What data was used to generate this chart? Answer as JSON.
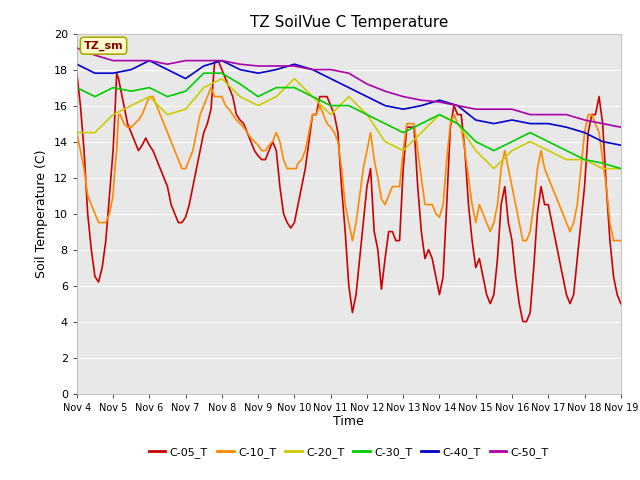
{
  "title": "TZ SoilVue C Temperature",
  "xlabel": "Time",
  "ylabel": "Soil Temperature (C)",
  "ylim": [
    0,
    20
  ],
  "yticks": [
    0,
    2,
    4,
    6,
    8,
    10,
    12,
    14,
    16,
    18,
    20
  ],
  "xtick_labels": [
    "Nov 4",
    "Nov 5",
    "Nov 6",
    "Nov 7",
    "Nov 8",
    "Nov 9",
    "Nov 10",
    "Nov 11",
    "Nov 12",
    "Nov 13",
    "Nov 14",
    "Nov 15",
    "Nov 16",
    "Nov 17",
    "Nov 18",
    "Nov 19"
  ],
  "annotation_text": "TZ_sm",
  "fig_bg_color": "#ffffff",
  "plot_bg_color": "#e8e8e8",
  "grid_color": "#ffffff",
  "series_order": [
    "C-05_T",
    "C-10_T",
    "C-20_T",
    "C-30_T",
    "C-40_T",
    "C-50_T"
  ],
  "series_colors": {
    "C-05_T": "#cc0000",
    "C-10_T": "#ff8800",
    "C-20_T": "#cccc00",
    "C-30_T": "#00cc00",
    "C-40_T": "#0000cc",
    "C-50_T": "#aa00aa"
  },
  "series": {
    "C-05_T": {
      "data_x": [
        0.0,
        0.1,
        0.2,
        0.3,
        0.4,
        0.5,
        0.6,
        0.7,
        0.8,
        0.9,
        1.0,
        1.05,
        1.1,
        1.15,
        1.2,
        1.3,
        1.4,
        1.5,
        1.6,
        1.7,
        1.8,
        1.9,
        2.0,
        2.1,
        2.2,
        2.3,
        2.4,
        2.5,
        2.6,
        2.7,
        2.8,
        2.9,
        3.0,
        3.1,
        3.2,
        3.3,
        3.4,
        3.5,
        3.6,
        3.7,
        3.8,
        3.9,
        4.0,
        4.1,
        4.2,
        4.3,
        4.4,
        4.5,
        4.6,
        4.7,
        4.8,
        4.9,
        5.0,
        5.1,
        5.2,
        5.3,
        5.4,
        5.5,
        5.6,
        5.7,
        5.8,
        5.9,
        6.0,
        6.05,
        6.1,
        6.2,
        6.3,
        6.4,
        6.5,
        6.6,
        6.7,
        6.8,
        6.9,
        7.0,
        7.1,
        7.2,
        7.3,
        7.4,
        7.5,
        7.6,
        7.7,
        7.8,
        7.9,
        8.0,
        8.1,
        8.2,
        8.3,
        8.4,
        8.5,
        8.6,
        8.7,
        8.8,
        8.9,
        9.0,
        9.1,
        9.2,
        9.3,
        9.4,
        9.5,
        9.6,
        9.7,
        9.8,
        9.9,
        10.0,
        10.1,
        10.2,
        10.3,
        10.4,
        10.5,
        10.6,
        10.7,
        10.8,
        10.9,
        11.0,
        11.1,
        11.2,
        11.3,
        11.4,
        11.5,
        11.6,
        11.7,
        11.8,
        11.9,
        12.0,
        12.1,
        12.2,
        12.3,
        12.4,
        12.5,
        12.6,
        12.7,
        12.8,
        12.9,
        13.0,
        13.1,
        13.2,
        13.3,
        13.4,
        13.5,
        13.6,
        13.7,
        13.8,
        13.9,
        14.0,
        14.1,
        14.2,
        14.3,
        14.4,
        14.5,
        14.6,
        14.7,
        14.8,
        14.9,
        15.0
      ],
      "data_y": [
        17.8,
        16.0,
        13.5,
        10.0,
        8.0,
        6.5,
        6.2,
        7.0,
        8.5,
        11.0,
        13.5,
        15.5,
        17.8,
        17.5,
        17.0,
        16.0,
        15.0,
        14.5,
        14.0,
        13.5,
        13.8,
        14.2,
        13.8,
        13.5,
        13.0,
        12.5,
        12.0,
        11.5,
        10.5,
        10.0,
        9.5,
        9.5,
        9.8,
        10.5,
        11.5,
        12.5,
        13.5,
        14.5,
        15.0,
        15.8,
        18.4,
        18.5,
        18.0,
        17.5,
        17.0,
        16.5,
        15.5,
        15.2,
        15.0,
        14.5,
        14.0,
        13.5,
        13.2,
        13.0,
        13.0,
        13.5,
        14.0,
        13.5,
        11.5,
        10.0,
        9.5,
        9.2,
        9.5,
        10.0,
        10.5,
        11.5,
        12.5,
        14.0,
        15.5,
        15.5,
        16.5,
        16.5,
        16.5,
        16.0,
        15.5,
        14.5,
        11.5,
        9.0,
        6.0,
        4.5,
        5.5,
        7.5,
        9.5,
        11.5,
        12.5,
        9.0,
        8.0,
        5.8,
        7.5,
        9.0,
        9.0,
        8.5,
        8.5,
        12.5,
        14.8,
        14.8,
        14.8,
        11.5,
        9.0,
        7.5,
        8.0,
        7.5,
        6.5,
        5.5,
        6.5,
        10.5,
        14.8,
        16.0,
        15.5,
        15.5,
        13.5,
        10.5,
        8.5,
        7.0,
        7.5,
        6.5,
        5.5,
        5.0,
        5.5,
        7.5,
        10.5,
        11.5,
        9.5,
        8.5,
        6.5,
        5.0,
        4.0,
        4.0,
        4.5,
        7.0,
        10.0,
        11.5,
        10.5,
        10.5,
        9.5,
        8.5,
        7.5,
        6.5,
        5.5,
        5.0,
        5.5,
        7.5,
        9.5,
        11.5,
        14.5,
        15.5,
        15.5,
        16.5,
        15.0,
        11.5,
        8.5,
        6.5,
        5.5,
        5.0
      ]
    },
    "C-10_T": {
      "data_x": [
        0.0,
        0.1,
        0.2,
        0.3,
        0.4,
        0.5,
        0.6,
        0.7,
        0.8,
        0.9,
        1.0,
        1.05,
        1.1,
        1.15,
        1.2,
        1.3,
        1.4,
        1.5,
        1.6,
        1.7,
        1.8,
        1.9,
        2.0,
        2.1,
        2.2,
        2.3,
        2.4,
        2.5,
        2.6,
        2.7,
        2.8,
        2.9,
        3.0,
        3.1,
        3.2,
        3.3,
        3.4,
        3.5,
        3.6,
        3.7,
        3.8,
        3.9,
        4.0,
        4.1,
        4.2,
        4.3,
        4.4,
        4.5,
        4.6,
        4.7,
        4.8,
        4.9,
        5.0,
        5.1,
        5.2,
        5.3,
        5.4,
        5.5,
        5.6,
        5.7,
        5.8,
        5.9,
        6.0,
        6.05,
        6.1,
        6.2,
        6.3,
        6.4,
        6.5,
        6.6,
        6.7,
        6.8,
        6.9,
        7.0,
        7.1,
        7.2,
        7.3,
        7.4,
        7.5,
        7.6,
        7.7,
        7.8,
        7.9,
        8.0,
        8.1,
        8.2,
        8.3,
        8.4,
        8.5,
        8.6,
        8.7,
        8.8,
        8.9,
        9.0,
        9.1,
        9.2,
        9.3,
        9.4,
        9.5,
        9.6,
        9.7,
        9.8,
        9.9,
        10.0,
        10.1,
        10.2,
        10.3,
        10.4,
        10.5,
        10.6,
        10.7,
        10.8,
        10.9,
        11.0,
        11.1,
        11.2,
        11.3,
        11.4,
        11.5,
        11.6,
        11.7,
        11.8,
        11.9,
        12.0,
        12.1,
        12.2,
        12.3,
        12.4,
        12.5,
        12.6,
        12.7,
        12.8,
        12.9,
        13.0,
        13.1,
        13.2,
        13.3,
        13.4,
        13.5,
        13.6,
        13.7,
        13.8,
        13.9,
        14.0,
        14.1,
        14.2,
        14.3,
        14.4,
        14.5,
        14.6,
        14.7,
        14.8,
        14.9,
        15.0
      ],
      "data_y": [
        14.5,
        13.5,
        12.5,
        11.0,
        10.5,
        10.0,
        9.5,
        9.5,
        9.5,
        10.0,
        11.0,
        12.5,
        13.5,
        15.5,
        15.5,
        15.0,
        14.8,
        14.8,
        15.0,
        15.2,
        15.5,
        16.0,
        16.5,
        16.5,
        16.0,
        15.5,
        15.0,
        14.5,
        14.0,
        13.5,
        13.0,
        12.5,
        12.5,
        13.0,
        13.5,
        14.5,
        15.5,
        16.0,
        16.5,
        17.0,
        16.5,
        16.5,
        16.5,
        16.0,
        15.8,
        15.5,
        15.2,
        15.0,
        14.8,
        14.5,
        14.2,
        14.0,
        13.8,
        13.5,
        13.5,
        13.8,
        14.0,
        14.5,
        14.0,
        13.0,
        12.5,
        12.5,
        12.5,
        12.5,
        12.8,
        13.0,
        13.5,
        14.5,
        15.5,
        15.5,
        16.0,
        15.5,
        15.0,
        14.8,
        14.5,
        14.0,
        12.5,
        10.5,
        9.5,
        8.5,
        9.5,
        11.0,
        12.5,
        13.5,
        14.5,
        13.0,
        12.0,
        10.8,
        10.5,
        11.0,
        11.5,
        11.5,
        11.5,
        13.5,
        15.0,
        15.0,
        15.0,
        13.5,
        12.0,
        10.5,
        10.5,
        10.5,
        10.0,
        9.8,
        10.5,
        13.0,
        15.0,
        15.5,
        15.0,
        14.8,
        13.5,
        12.0,
        10.5,
        9.5,
        10.5,
        10.0,
        9.5,
        9.0,
        9.5,
        10.5,
        12.5,
        13.5,
        12.5,
        11.5,
        10.5,
        9.5,
        8.5,
        8.5,
        9.0,
        10.5,
        12.5,
        13.5,
        12.5,
        12.0,
        11.5,
        11.0,
        10.5,
        10.0,
        9.5,
        9.0,
        9.5,
        10.5,
        12.5,
        14.5,
        15.5,
        15.5,
        15.0,
        14.5,
        13.0,
        11.5,
        9.5,
        8.5,
        8.5,
        8.5
      ]
    },
    "C-20_T": {
      "data_x": [
        0.0,
        0.5,
        1.0,
        1.5,
        2.0,
        2.5,
        3.0,
        3.5,
        4.0,
        4.5,
        5.0,
        5.5,
        6.0,
        6.5,
        7.0,
        7.5,
        8.0,
        8.5,
        9.0,
        9.5,
        10.0,
        10.5,
        11.0,
        11.5,
        12.0,
        12.5,
        13.0,
        13.5,
        14.0,
        14.5,
        15.0
      ],
      "data_y": [
        14.5,
        14.5,
        15.5,
        16.0,
        16.5,
        15.5,
        15.8,
        17.0,
        17.5,
        16.5,
        16.0,
        16.5,
        17.5,
        16.5,
        15.5,
        16.5,
        15.5,
        14.0,
        13.5,
        14.5,
        15.5,
        15.0,
        13.5,
        12.5,
        13.5,
        14.0,
        13.5,
        13.0,
        13.0,
        12.5,
        12.5
      ]
    },
    "C-30_T": {
      "data_x": [
        0.0,
        0.5,
        1.0,
        1.5,
        2.0,
        2.5,
        3.0,
        3.5,
        4.0,
        4.5,
        5.0,
        5.5,
        6.0,
        6.5,
        7.0,
        7.5,
        8.0,
        8.5,
        9.0,
        9.5,
        10.0,
        10.5,
        11.0,
        11.5,
        12.0,
        12.5,
        13.0,
        13.5,
        14.0,
        14.5,
        15.0
      ],
      "data_y": [
        17.0,
        16.5,
        17.0,
        16.8,
        17.0,
        16.5,
        16.8,
        17.8,
        17.8,
        17.2,
        16.5,
        17.0,
        17.0,
        16.5,
        16.0,
        16.0,
        15.5,
        15.0,
        14.5,
        15.0,
        15.5,
        15.0,
        14.0,
        13.5,
        14.0,
        14.5,
        14.0,
        13.5,
        13.0,
        12.8,
        12.5
      ]
    },
    "C-40_T": {
      "data_x": [
        0.0,
        0.5,
        1.0,
        1.5,
        2.0,
        2.5,
        3.0,
        3.5,
        4.0,
        4.5,
        5.0,
        5.5,
        6.0,
        6.5,
        7.0,
        7.5,
        8.0,
        8.5,
        9.0,
        9.5,
        10.0,
        10.5,
        11.0,
        11.5,
        12.0,
        12.5,
        13.0,
        13.5,
        14.0,
        14.5,
        15.0
      ],
      "data_y": [
        18.3,
        17.8,
        17.8,
        18.0,
        18.5,
        18.0,
        17.5,
        18.2,
        18.5,
        18.0,
        17.8,
        18.0,
        18.3,
        18.0,
        17.5,
        17.0,
        16.5,
        16.0,
        15.8,
        16.0,
        16.3,
        16.0,
        15.2,
        15.0,
        15.2,
        15.0,
        15.0,
        14.8,
        14.5,
        14.0,
        13.8
      ]
    },
    "C-50_T": {
      "data_x": [
        0.0,
        0.5,
        1.0,
        1.5,
        2.0,
        2.5,
        3.0,
        3.5,
        4.0,
        4.5,
        5.0,
        5.5,
        6.0,
        6.5,
        7.0,
        7.5,
        8.0,
        8.5,
        9.0,
        9.5,
        10.0,
        10.5,
        11.0,
        11.5,
        12.0,
        12.5,
        13.0,
        13.5,
        14.0,
        14.5,
        15.0
      ],
      "data_y": [
        19.2,
        18.8,
        18.5,
        18.5,
        18.5,
        18.3,
        18.5,
        18.5,
        18.5,
        18.3,
        18.2,
        18.2,
        18.2,
        18.0,
        18.0,
        17.8,
        17.2,
        16.8,
        16.5,
        16.3,
        16.2,
        16.0,
        15.8,
        15.8,
        15.8,
        15.5,
        15.5,
        15.5,
        15.2,
        15.0,
        14.8
      ]
    }
  }
}
